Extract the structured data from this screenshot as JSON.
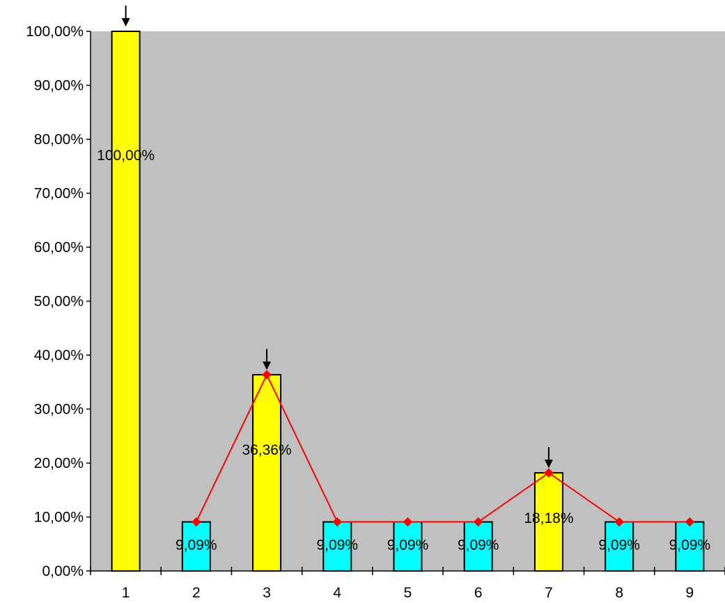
{
  "chart_data": {
    "type": "bar",
    "title": "",
    "xlabel": "",
    "ylabel": "",
    "categories": [
      "1",
      "2",
      "3",
      "4",
      "5",
      "6",
      "7",
      "8",
      "9"
    ],
    "values": [
      100.0,
      9.09,
      36.36,
      9.09,
      9.09,
      9.09,
      18.18,
      9.09,
      9.09
    ],
    "data_labels": [
      "100,00%",
      "9,09%",
      "36,36%",
      "9,09%",
      "9,09%",
      "9,09%",
      "18,18%",
      "9,09%",
      "9,09%"
    ],
    "line_overlay": {
      "x": [
        "2",
        "3",
        "4",
        "5",
        "6",
        "7",
        "8",
        "9"
      ],
      "values": [
        9.09,
        36.36,
        9.09,
        9.09,
        9.09,
        18.18,
        9.09,
        9.09
      ],
      "color": "#ff0000",
      "marker": "diamond"
    },
    "highlighted_categories": [
      "1",
      "3",
      "7"
    ],
    "arrow_markers_at": [
      "1",
      "3",
      "7"
    ],
    "y_ticks": [
      "0,00%",
      "10,00%",
      "20,00%",
      "30,00%",
      "40,00%",
      "50,00%",
      "60,00%",
      "70,00%",
      "80,00%",
      "90,00%",
      "100,00%"
    ],
    "ylim": [
      0,
      100
    ],
    "grid": false,
    "legend": "none",
    "colors": {
      "plot_background": "#c0c0c0",
      "bar_highlight": "#ffff00",
      "bar_normal": "#00ffff",
      "line": "#ff0000",
      "arrow": "#000000",
      "bar_border": "#000000"
    }
  }
}
